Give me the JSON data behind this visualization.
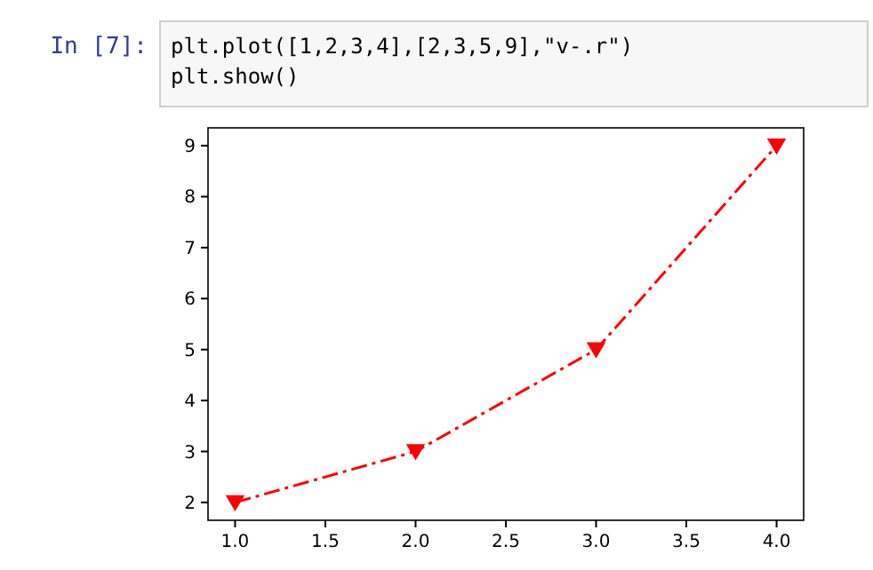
{
  "chart_data": {
    "type": "line",
    "annotations": [
      "In [7]:",
      "plt.plot([1,2,3,4],[2,3,5,9],\"v-.r\")",
      "plt.show()"
    ],
    "x": [
      1,
      2,
      3,
      4
    ],
    "series": [
      {
        "color": "#ff0000",
        "values": [
          2,
          3,
          5,
          9
        ]
      }
    ],
    "xlim": [
      0.85,
      4.15
    ],
    "xticks": [
      {
        "value": 1,
        "label": "1.0"
      },
      {
        "value": 1.5,
        "label": "1.5"
      },
      {
        "value": 2,
        "label": "2.0"
      },
      {
        "value": 2.5,
        "label": "2.5"
      },
      {
        "value": 3,
        "label": "3.0"
      },
      {
        "value": 3.5,
        "label": "3.5"
      },
      {
        "value": 4,
        "label": "4.0"
      }
    ],
    "ylim": [
      1.65,
      9.35
    ],
    "yticks": [
      2,
      3,
      4,
      5,
      6,
      7,
      8,
      9
    ],
    "marker": "triangle",
    "line_style": "dashed",
    "grid": false
  }
}
